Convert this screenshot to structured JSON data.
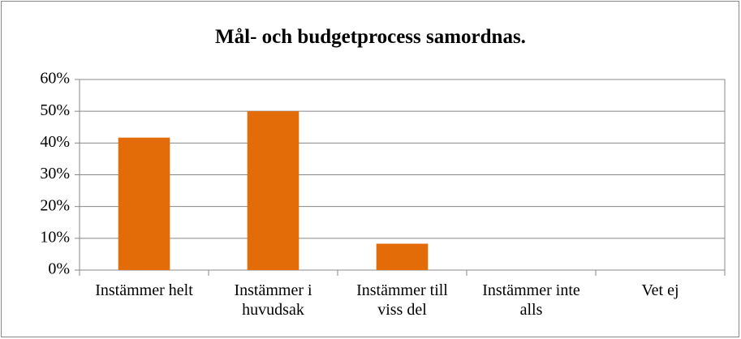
{
  "chart_data": {
    "type": "bar",
    "title": "Mål- och budgetprocess samordnas.",
    "categories": [
      "Instämmer helt",
      "Instämmer i huvudsak",
      "Instämmer till viss del",
      "Instämmer inte alls",
      "Vet ej"
    ],
    "values": [
      41.7,
      50,
      8.3,
      0,
      0
    ],
    "color": "#e36c09",
    "ylim": [
      0,
      60
    ],
    "yticks": [
      {
        "value": 0,
        "label": "0%"
      },
      {
        "value": 10,
        "label": "10%"
      },
      {
        "value": 20,
        "label": "20%"
      },
      {
        "value": 30,
        "label": "30%"
      },
      {
        "value": 40,
        "label": "40%"
      },
      {
        "value": 50,
        "label": "50%"
      },
      {
        "value": 60,
        "label": "60%"
      }
    ],
    "grid": true
  }
}
